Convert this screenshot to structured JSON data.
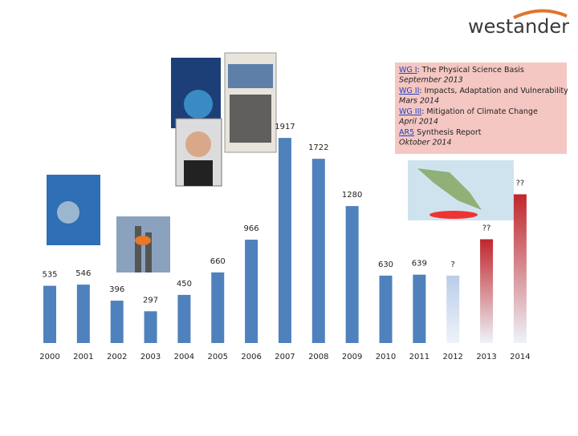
{
  "logo": "westander",
  "info_box": {
    "items": [
      {
        "link": "WG I",
        "text": ": The Physical Science Basis",
        "date": "September 2013"
      },
      {
        "link": "WG II",
        "text": ": Impacts, Adaptation and Vulnerability",
        "date": "Mars 2014"
      },
      {
        "link": "WG III",
        "text": ": Mitigation of Climate Change",
        "date": "April 2014"
      },
      {
        "link": "AR5",
        "text": " Synthesis Report",
        "date": "Oktober 2014"
      }
    ]
  },
  "chart_data": {
    "type": "bar",
    "categories": [
      "2000",
      "2001",
      "2002",
      "2003",
      "2004",
      "2005",
      "2006",
      "2007",
      "2008",
      "2009",
      "2010",
      "2011",
      "2012",
      "2013",
      "2014"
    ],
    "values": [
      535,
      546,
      396,
      297,
      450,
      660,
      966,
      1917,
      1722,
      1280,
      630,
      639,
      630,
      970,
      1390
    ],
    "value_labels": [
      "535",
      "546",
      "396",
      "297",
      "450",
      "660",
      "966",
      "1917",
      "1722",
      "1280",
      "630",
      "639",
      "?",
      "??",
      "??"
    ],
    "colors": [
      "#4f81bd",
      "#4f81bd",
      "#4f81bd",
      "#4f81bd",
      "#4f81bd",
      "#4f81bd",
      "#4f81bd",
      "#4f81bd",
      "#4f81bd",
      "#4f81bd",
      "#4f81bd",
      "#4f81bd",
      "#b9cde8",
      "#c0262c",
      "#c0262c"
    ],
    "ylim": [
      0,
      2000
    ]
  }
}
